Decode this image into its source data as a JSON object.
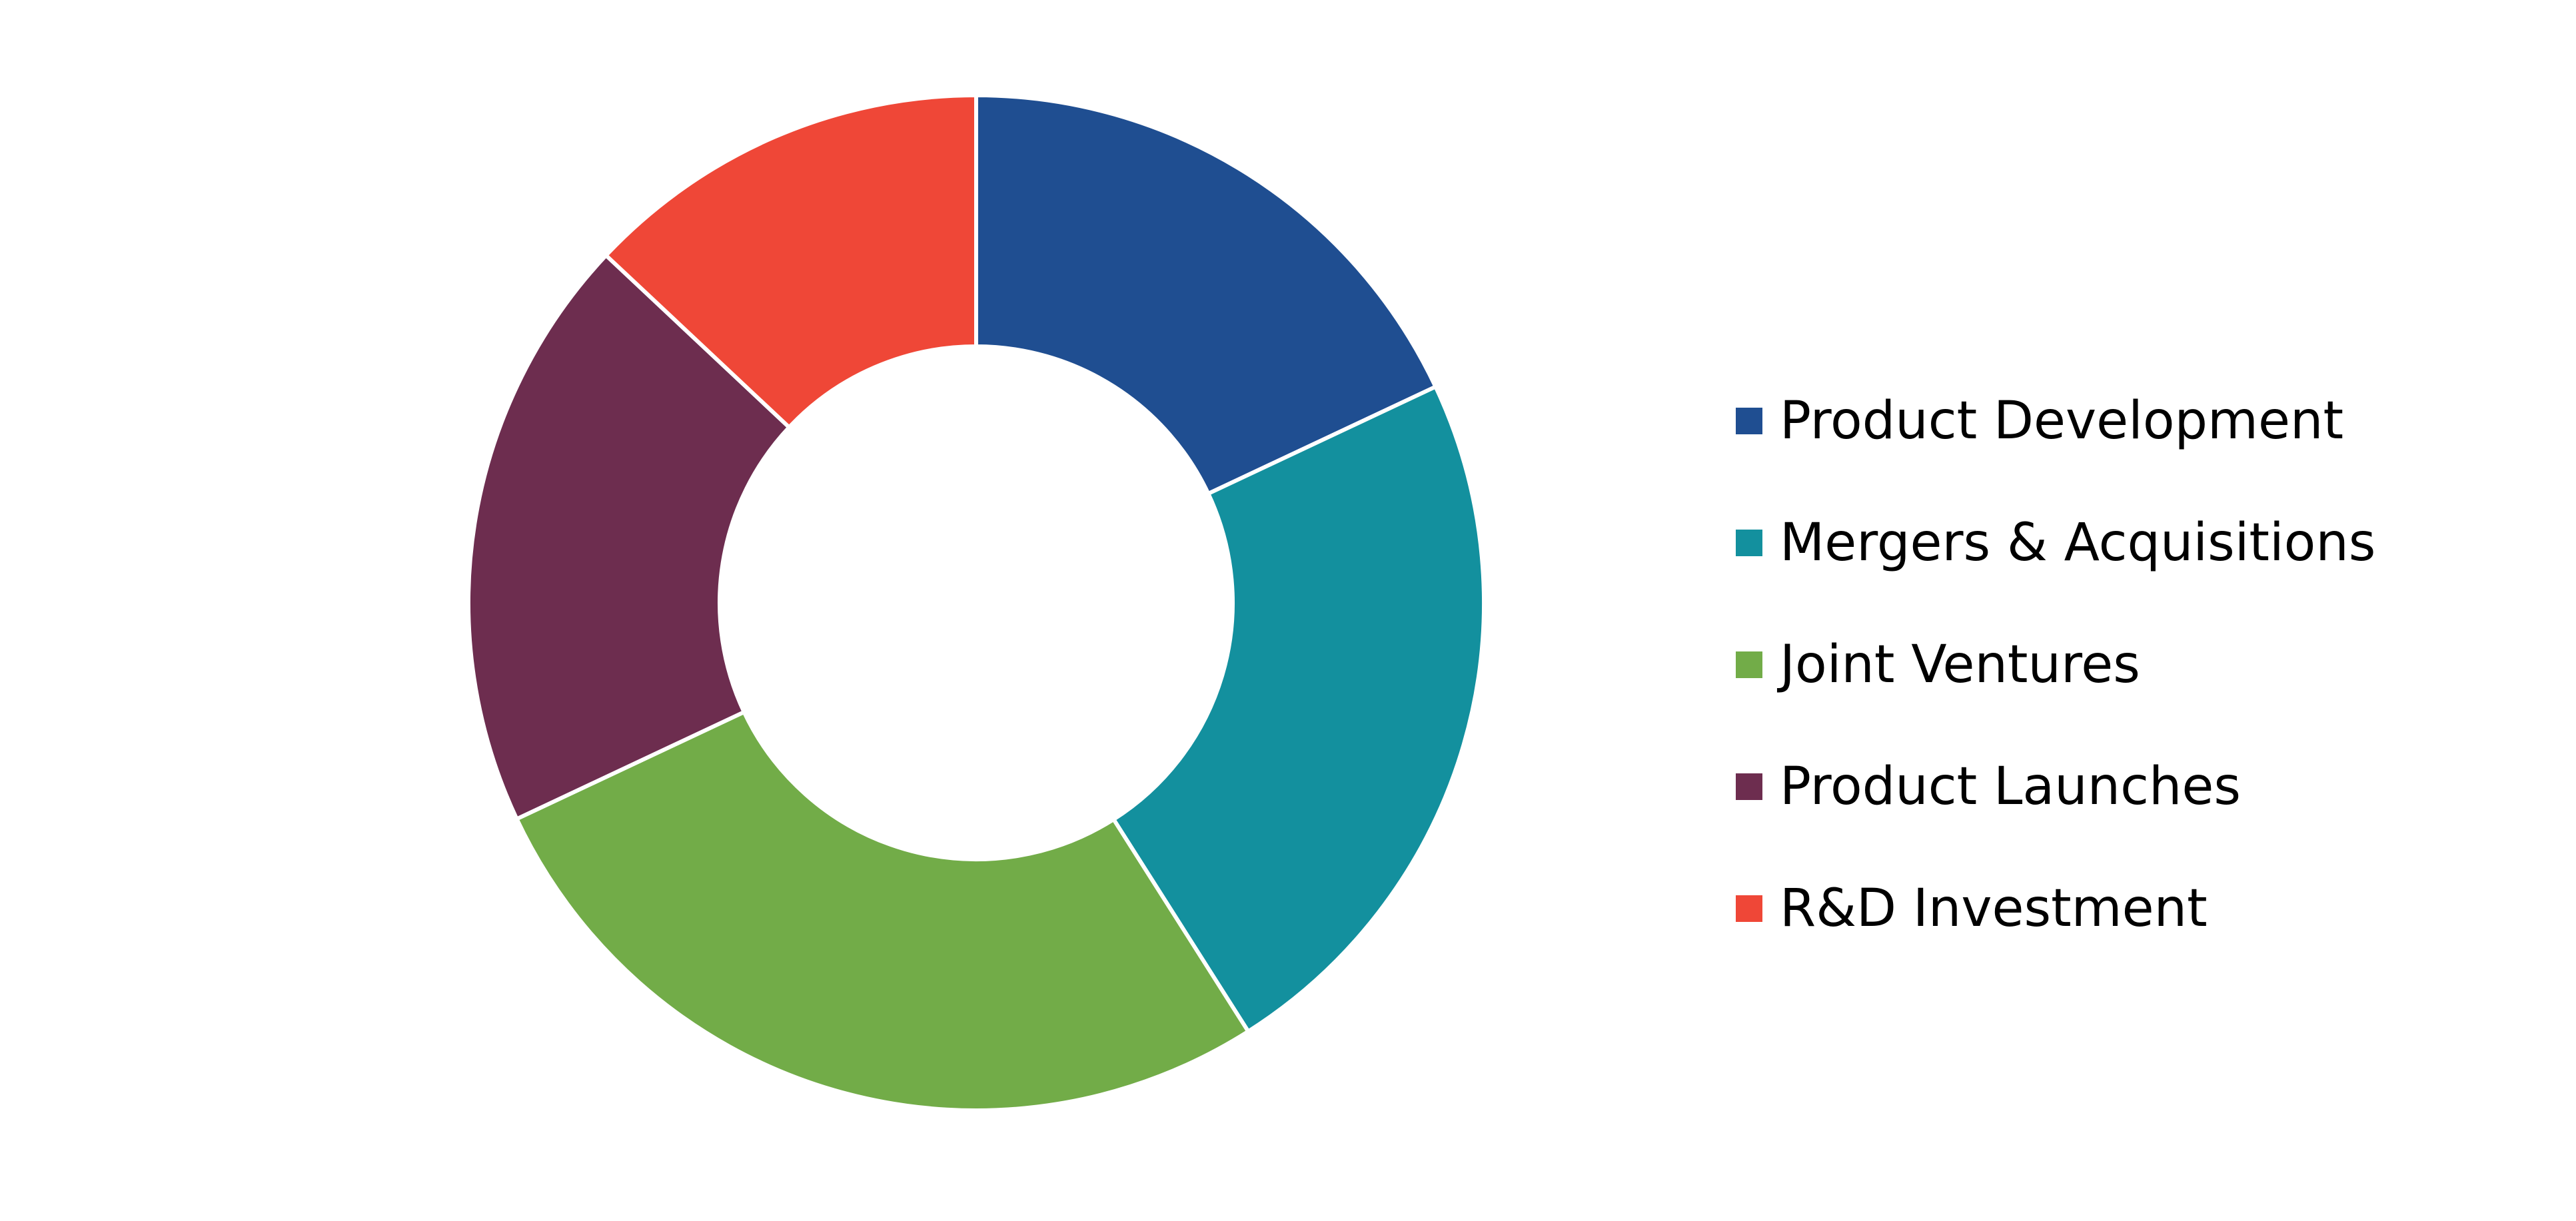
{
  "chart_data": {
    "type": "pie",
    "variant": "donut",
    "title": "",
    "categories": [
      "Product Development",
      "Mergers & Acquisitions",
      "Joint Ventures",
      "Product Launches",
      "R&D Investment"
    ],
    "values": [
      18,
      23,
      27,
      19,
      13
    ],
    "colors": [
      "#1f4e91",
      "#13909e",
      "#72ac48",
      "#6d2d4f",
      "#ef4737"
    ],
    "legend": {
      "position": "right",
      "items": [
        {
          "label": "Product Development",
          "color": "#1f4e91"
        },
        {
          "label": "Mergers & Acquisitions",
          "color": "#13909e"
        },
        {
          "label": "Joint Ventures",
          "color": "#72ac48"
        },
        {
          "label": "Product Launches",
          "color": "#6d2d4f"
        },
        {
          "label": "R&D Investment",
          "color": "#ef4737"
        }
      ]
    },
    "start_angle": "top, clockwise",
    "data_labels": false
  }
}
